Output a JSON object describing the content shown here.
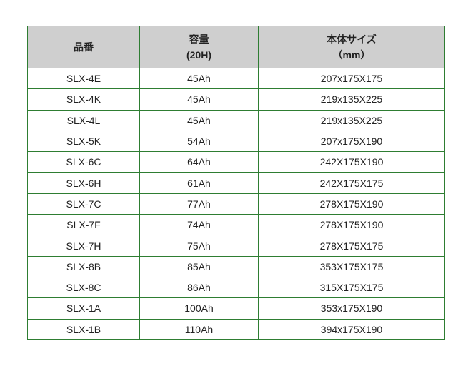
{
  "header": {
    "part_number": "品番",
    "capacity": "容量",
    "capacity_sub": "(20H)",
    "size": "本体サイズ",
    "size_sub": "（mm）"
  },
  "rows": [
    {
      "part": "SLX-4E",
      "capacity": "45Ah",
      "size": "207x175X175"
    },
    {
      "part": "SLX-4K",
      "capacity": "45Ah",
      "size": "219x135X225"
    },
    {
      "part": "SLX-4L",
      "capacity": "45Ah",
      "size": "219x135X225"
    },
    {
      "part": "SLX-5K",
      "capacity": "54Ah",
      "size": "207x175X190"
    },
    {
      "part": "SLX-6C",
      "capacity": "64Ah",
      "size": "242X175X190"
    },
    {
      "part": "SLX-6H",
      "capacity": "61Ah",
      "size": "242X175X175"
    },
    {
      "part": "SLX-7C",
      "capacity": "77Ah",
      "size": "278X175X190"
    },
    {
      "part": "SLX-7F",
      "capacity": "74Ah",
      "size": "278X175X190"
    },
    {
      "part": "SLX-7H",
      "capacity": "75Ah",
      "size": "278X175X175"
    },
    {
      "part": "SLX-8B",
      "capacity": "85Ah",
      "size": "353X175X175"
    },
    {
      "part": "SLX-8C",
      "capacity": "86Ah",
      "size": "315X175X175"
    },
    {
      "part": "SLX-1A",
      "capacity": "100Ah",
      "size": "353x175X190"
    },
    {
      "part": "SLX-1B",
      "capacity": "110Ah",
      "size": "394x175X190"
    }
  ],
  "colors": {
    "border": "#2e7d32",
    "header_bg": "#cfcfcf"
  }
}
